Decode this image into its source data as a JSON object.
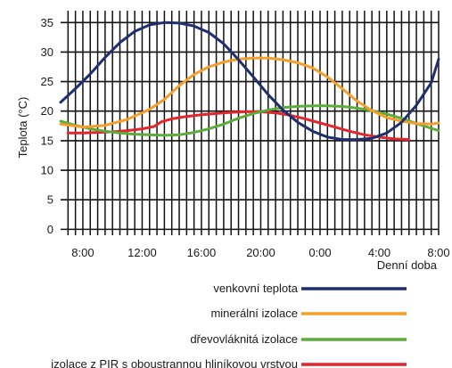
{
  "chart_data": {
    "type": "line",
    "title": "",
    "xlabel": "Denní doba",
    "ylabel": "Teplota (°C)",
    "xlim": [
      6.5,
      32.0
    ],
    "ylim": [
      -1,
      37
    ],
    "yticks": [
      0,
      5,
      10,
      15,
      20,
      25,
      30,
      35
    ],
    "xticks": [
      {
        "value": 8,
        "label": "8:00"
      },
      {
        "value": 12,
        "label": "12:00"
      },
      {
        "value": 16,
        "label": "16:00"
      },
      {
        "value": 20,
        "label": "20:00"
      },
      {
        "value": 24,
        "label": "0:00"
      },
      {
        "value": 28,
        "label": "4:00"
      },
      {
        "value": 32,
        "label": "8:00"
      }
    ],
    "grid": true,
    "legend_position": "bottom",
    "series": [
      {
        "name": "venkovní teplota",
        "color": "#1f2f6e",
        "x": [
          6.5,
          7.5,
          8.5,
          9.5,
          10.5,
          11.5,
          12.5,
          13.5,
          14.5,
          15.5,
          16.5,
          17.5,
          18.5,
          19.5,
          20.5,
          21.5,
          22.5,
          23.5,
          24.5,
          25.5,
          26.5,
          27.5,
          28.5,
          29.5,
          30.5,
          31.5,
          32.0
        ],
        "y": [
          21.5,
          23.8,
          26.3,
          29.1,
          31.6,
          33.5,
          34.6,
          35.0,
          34.9,
          34.4,
          33.3,
          31.4,
          28.7,
          25.8,
          22.8,
          20.2,
          18.1,
          16.6,
          15.6,
          15.2,
          15.2,
          15.4,
          16.3,
          18.1,
          21.0,
          24.8,
          28.8
        ]
      },
      {
        "name": "minerální izolace",
        "color": "#f59f2a",
        "x": [
          6.5,
          8,
          9.5,
          11,
          12.5,
          13.5,
          14.5,
          15.5,
          16.5,
          17.5,
          18.5,
          19.5,
          20.5,
          21.5,
          22.5,
          23.5,
          24.5,
          25.5,
          26.5,
          27.5,
          28.5,
          29.5,
          30.5,
          31.5,
          32.0
        ],
        "y": [
          17.8,
          17.3,
          17.6,
          18.6,
          20.3,
          22.0,
          24.3,
          26.2,
          27.5,
          28.3,
          28.8,
          29.0,
          29.0,
          28.7,
          28.2,
          27.3,
          25.8,
          23.8,
          21.7,
          20.1,
          18.9,
          18.3,
          17.9,
          17.8,
          18.0
        ]
      },
      {
        "name": "dřevovláknitá izolace",
        "color": "#5cac3c",
        "x": [
          6.5,
          7.5,
          8.5,
          9.5,
          10.5,
          11.5,
          12.5,
          13.5,
          14.5,
          15.5,
          16.5,
          17.5,
          18.5,
          19.5,
          20.5,
          21.5,
          22.5,
          23.5,
          24.5,
          25.5,
          26.5,
          27.5,
          28.5,
          29.5,
          30.5,
          31.5,
          32.0
        ],
        "y": [
          18.3,
          17.6,
          17.0,
          16.6,
          16.3,
          16.1,
          16.0,
          15.9,
          16.0,
          16.4,
          17.0,
          17.8,
          18.8,
          19.6,
          20.2,
          20.6,
          20.8,
          20.9,
          20.9,
          20.8,
          20.5,
          20.1,
          19.5,
          18.8,
          17.9,
          17.1,
          16.7
        ]
      },
      {
        "name": "izolace z PIR s oboustrannou hliníkovou vrstvou",
        "color": "#e2262d",
        "x": [
          7.0,
          8,
          9,
          10,
          11,
          12,
          12.8,
          13.3,
          14,
          15,
          16,
          17,
          18,
          19,
          20,
          21,
          22,
          23,
          24,
          25,
          26,
          27,
          28,
          29,
          30
        ],
        "y": [
          16.3,
          16.3,
          16.4,
          16.5,
          16.7,
          17.0,
          17.4,
          18.2,
          18.7,
          19.1,
          19.4,
          19.6,
          19.8,
          19.9,
          19.9,
          19.7,
          19.3,
          18.7,
          18.0,
          17.3,
          16.6,
          16.0,
          15.6,
          15.3,
          15.2
        ]
      }
    ]
  }
}
